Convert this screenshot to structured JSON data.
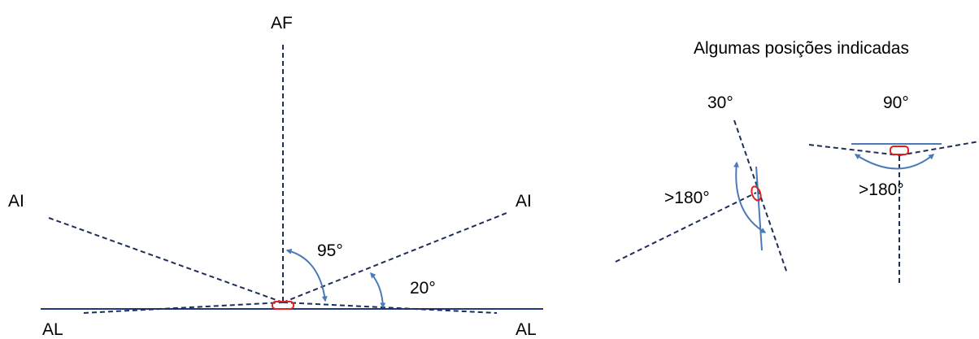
{
  "diagram": {
    "colors": {
      "dashed_line": "#1f2d5a",
      "solid_line": "#1f3a7a",
      "arrow": "#4a7ab8",
      "marker": "#e02020"
    },
    "main": {
      "label_af": "AF",
      "label_ai_left": "AI",
      "label_ai_right": "AI",
      "label_al_left": "AL",
      "label_al_right": "AL",
      "angle_95": "95°",
      "angle_20": "20°"
    },
    "inset": {
      "title": "Algumas posições indicadas",
      "pos1_angle": "30°",
      "pos1_reflex": ">180°",
      "pos2_angle": "90°",
      "pos2_reflex": ">180°"
    }
  }
}
